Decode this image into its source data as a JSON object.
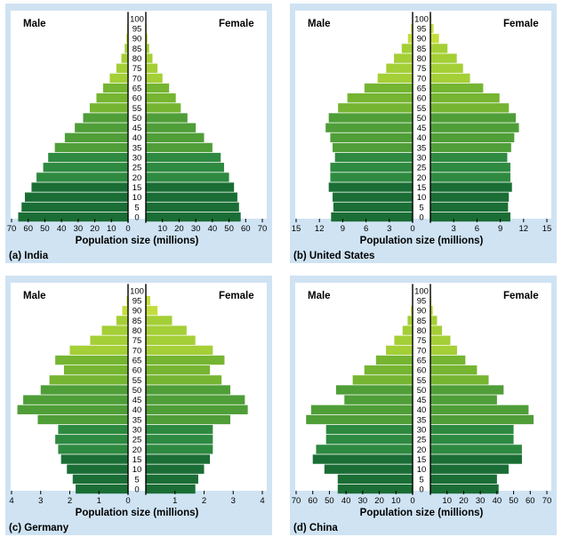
{
  "figure": {
    "age_labels": [
      "0",
      "5",
      "10",
      "15",
      "20",
      "25",
      "30",
      "35",
      "40",
      "45",
      "50",
      "55",
      "60",
      "65",
      "70",
      "75",
      "80",
      "85",
      "90",
      "95",
      "100"
    ],
    "male_label": "Male",
    "female_label": "Female",
    "colors": {
      "panel_bg": "#cfe3f3",
      "bar_gradient": [
        "#1a6e35",
        "#2e8a40",
        "#4f9e38",
        "#75b531",
        "#a4cf36",
        "#c4dd3c"
      ]
    }
  },
  "chart_data": [
    {
      "type": "bar",
      "orientation": "population-pyramid",
      "caption": "(a) India",
      "xlabel": "Population size (millions)",
      "xmax": 70,
      "ticks": [
        70,
        60,
        50,
        40,
        30,
        20,
        10,
        0
      ],
      "tick_labels": [
        "70",
        "60",
        "50",
        "40",
        "30",
        "20",
        "10",
        "0",
        "10",
        "20",
        "30",
        "40",
        "50",
        "60",
        "70"
      ],
      "categories": [
        "0",
        "5",
        "10",
        "15",
        "20",
        "25",
        "30",
        "35",
        "40",
        "45",
        "50",
        "55",
        "60",
        "65",
        "70",
        "75",
        "80",
        "85",
        "90",
        "95",
        "100"
      ],
      "series": [
        {
          "name": "Male",
          "values": [
            66,
            64,
            62,
            58,
            55,
            51,
            48,
            44,
            38,
            32,
            27,
            23,
            19,
            15,
            11,
            7,
            4,
            2,
            1,
            0.5,
            0.2
          ]
        },
        {
          "name": "Female",
          "values": [
            57,
            56,
            55,
            53,
            50,
            47,
            45,
            40,
            35,
            30,
            25,
            21,
            18,
            14,
            10,
            7,
            4,
            2,
            1,
            0.5,
            0.2
          ]
        }
      ]
    },
    {
      "type": "bar",
      "orientation": "population-pyramid",
      "caption": "(b) United States",
      "xlabel": "Population size (millions)",
      "xmax": 15,
      "ticks": [
        15,
        12,
        9,
        6,
        3,
        0
      ],
      "tick_labels": [
        "15",
        "12",
        "9",
        "6",
        "3",
        "0",
        "3",
        "6",
        "9",
        "12",
        "15"
      ],
      "categories": [
        "0",
        "5",
        "10",
        "15",
        "20",
        "25",
        "30",
        "35",
        "40",
        "45",
        "50",
        "55",
        "60",
        "65",
        "70",
        "75",
        "80",
        "85",
        "90",
        "95",
        "100"
      ],
      "series": [
        {
          "name": "Male",
          "values": [
            10.5,
            10.2,
            10.3,
            10.8,
            10.6,
            10.6,
            10.0,
            10.3,
            10.6,
            11.2,
            10.8,
            9.6,
            8.4,
            6.2,
            4.5,
            3.4,
            2.4,
            1.4,
            0.6,
            0.2,
            0.05
          ]
        },
        {
          "name": "Female",
          "values": [
            10.3,
            10.0,
            10.1,
            10.5,
            10.3,
            10.3,
            9.9,
            10.4,
            10.8,
            11.4,
            11.0,
            10.1,
            8.9,
            6.8,
            5.1,
            4.2,
            3.4,
            2.2,
            1.1,
            0.4,
            0.1
          ]
        }
      ]
    },
    {
      "type": "bar",
      "orientation": "population-pyramid",
      "caption": "(c) Germany",
      "xlabel": "Population size (millions)",
      "xmax": 4,
      "ticks": [
        4,
        3,
        2,
        1,
        0
      ],
      "tick_labels": [
        "4",
        "3",
        "2",
        "1",
        "0",
        "1",
        "2",
        "3",
        "4"
      ],
      "categories": [
        "0",
        "5",
        "10",
        "15",
        "20",
        "25",
        "30",
        "35",
        "40",
        "45",
        "50",
        "55",
        "60",
        "65",
        "70",
        "75",
        "80",
        "85",
        "90",
        "95",
        "100"
      ],
      "series": [
        {
          "name": "Male",
          "values": [
            1.8,
            1.9,
            2.1,
            2.3,
            2.4,
            2.5,
            2.4,
            3.1,
            3.8,
            3.6,
            3.0,
            2.7,
            2.2,
            2.5,
            2.0,
            1.3,
            0.9,
            0.4,
            0.2,
            0.05,
            0.01
          ]
        },
        {
          "name": "Female",
          "values": [
            1.7,
            1.8,
            2.0,
            2.2,
            2.3,
            2.3,
            2.3,
            2.9,
            3.5,
            3.4,
            2.9,
            2.6,
            2.2,
            2.7,
            2.3,
            1.7,
            1.4,
            0.9,
            0.4,
            0.15,
            0.02
          ]
        }
      ]
    },
    {
      "type": "bar",
      "orientation": "population-pyramid",
      "caption": "(d) China",
      "xlabel": "Population size (millions)",
      "xmax": 70,
      "ticks": [
        70,
        60,
        50,
        40,
        30,
        20,
        10,
        0
      ],
      "tick_labels": [
        "70",
        "60",
        "50",
        "40",
        "30",
        "20",
        "10",
        "0",
        "10",
        "20",
        "30",
        "40",
        "50",
        "60",
        "70"
      ],
      "categories": [
        "0",
        "5",
        "10",
        "15",
        "20",
        "25",
        "30",
        "35",
        "40",
        "45",
        "50",
        "55",
        "60",
        "65",
        "70",
        "75",
        "80",
        "85",
        "90",
        "95",
        "100"
      ],
      "series": [
        {
          "name": "Male",
          "values": [
            45,
            45,
            53,
            60,
            58,
            52,
            52,
            64,
            61,
            41,
            46,
            36,
            29,
            22,
            16,
            11,
            6,
            3,
            1,
            0.3,
            0.1
          ]
        },
        {
          "name": "Female",
          "values": [
            41,
            40,
            47,
            55,
            55,
            50,
            50,
            62,
            59,
            40,
            44,
            35,
            28,
            21,
            16,
            12,
            7,
            4,
            1.5,
            0.5,
            0.1
          ]
        }
      ]
    }
  ]
}
